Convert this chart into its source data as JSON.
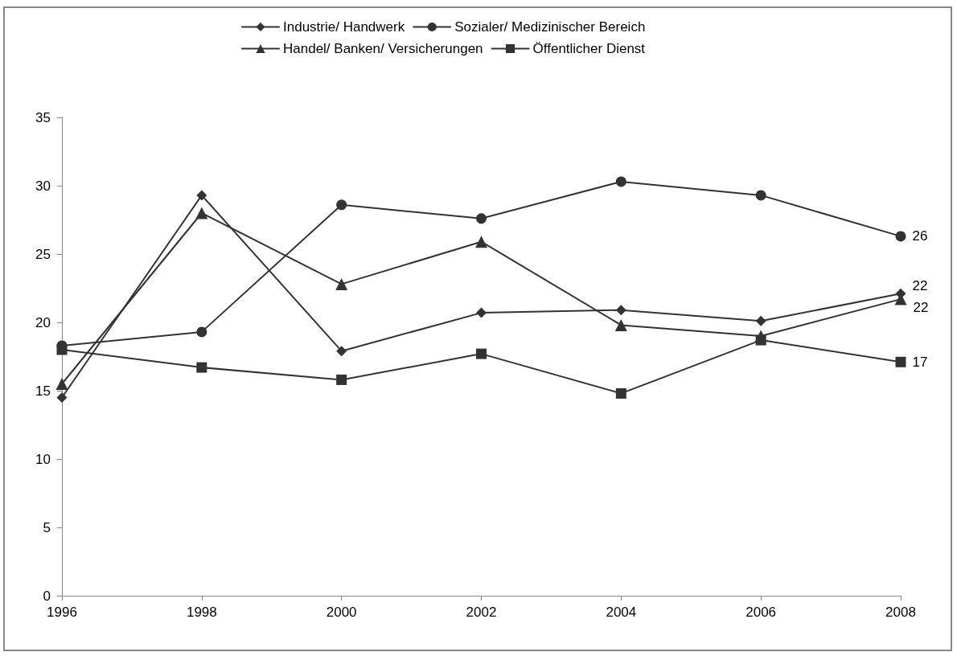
{
  "chart_data": {
    "type": "line",
    "x": [
      1996,
      1998,
      2000,
      2002,
      2004,
      2006,
      2008
    ],
    "series": [
      {
        "name": "Industrie/ Handwerk",
        "color": "#333333",
        "marker": "diamond",
        "values": [
          14.5,
          29.3,
          17.9,
          20.7,
          20.9,
          20.1,
          22.1
        ],
        "value_labels": [
          null,
          null,
          null,
          null,
          null,
          null,
          "22"
        ]
      },
      {
        "name": "Sozialer/ Medizinischer Bereich",
        "color": "#333333",
        "marker": "circle",
        "values": [
          18.3,
          19.3,
          28.6,
          27.6,
          30.3,
          29.3,
          26.3
        ],
        "value_labels": [
          null,
          null,
          null,
          null,
          null,
          null,
          "26"
        ]
      },
      {
        "name": "Handel/ Banken/ Versicherungen",
        "color": "#333333",
        "marker": "triangle",
        "values": [
          15.5,
          28.0,
          22.8,
          25.9,
          19.8,
          19.0,
          21.7
        ],
        "value_labels": [
          null,
          null,
          null,
          null,
          null,
          null,
          "22"
        ]
      },
      {
        "name": "Öffentlicher Dienst",
        "color": "#333333",
        "marker": "square",
        "values": [
          18.0,
          16.7,
          15.8,
          17.7,
          14.8,
          18.7,
          17.1
        ],
        "value_labels": [
          null,
          null,
          null,
          null,
          null,
          null,
          "17"
        ]
      }
    ],
    "xlim": [
      1996,
      2008
    ],
    "xticks": [
      1996,
      1998,
      2000,
      2002,
      2004,
      2006,
      2008
    ],
    "ylim": [
      0,
      35
    ],
    "yticks": [
      0,
      5,
      10,
      15,
      20,
      25,
      30,
      35
    ],
    "grid": false,
    "legend": "top",
    "line_style": "solid"
  }
}
